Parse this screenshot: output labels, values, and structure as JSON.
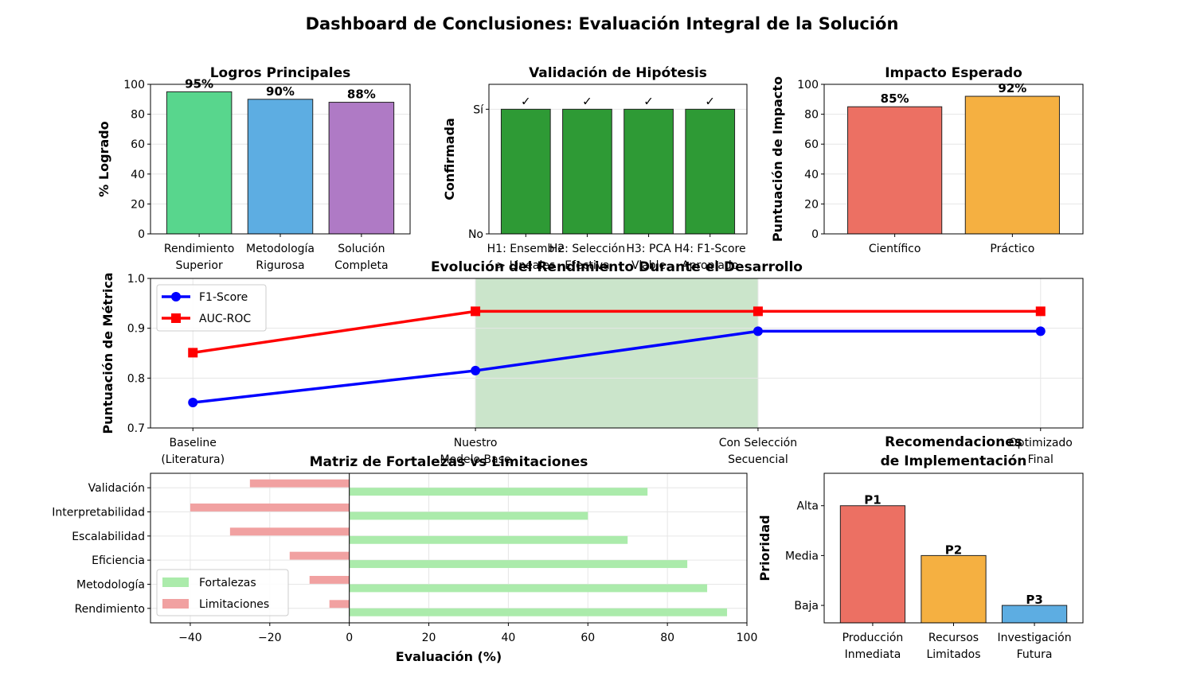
{
  "suptitle": "Dashboard de Conclusiones: Evaluación Integral de la Solución",
  "chart_data": [
    {
      "id": "logros",
      "type": "bar",
      "title": "Logros Principales",
      "ylabel": "% Logrado",
      "xlabel": "",
      "ylim": [
        0,
        100
      ],
      "yticks": [
        0,
        20,
        40,
        60,
        80,
        100
      ],
      "categories": [
        [
          "Rendimiento",
          "Superior"
        ],
        [
          "Metodología",
          "Rigurosa"
        ],
        [
          "Solución",
          "Completa"
        ]
      ],
      "values": [
        95,
        90,
        88
      ],
      "data_labels": [
        "95%",
        "90%",
        "88%"
      ],
      "colors": [
        "#58d68d",
        "#5dade2",
        "#af7ac5"
      ],
      "grid": true
    },
    {
      "id": "hipotesis",
      "type": "bar",
      "title": "Validación de Hipótesis",
      "ylabel": "Confirmada",
      "xlabel": "",
      "ylim": [
        0,
        1.2
      ],
      "ytick_values": [
        0,
        1
      ],
      "ytick_labels": [
        "No",
        "Sí"
      ],
      "categories": [
        [
          "H1: Ensemble",
          "> Lineales"
        ],
        [
          "H2: Selección",
          "Efectiva"
        ],
        [
          "H3: PCA",
          "Viable"
        ],
        [
          "H4: F1-Score",
          "Apropiado"
        ]
      ],
      "values": [
        1,
        1,
        1,
        1
      ],
      "data_labels": [
        "✓",
        "✓",
        "✓",
        "✓"
      ],
      "colors": [
        "#2e9a35",
        "#2e9a35",
        "#2e9a35",
        "#2e9a35"
      ],
      "label_color": "#1a7a1a",
      "grid": true
    },
    {
      "id": "impacto",
      "type": "bar",
      "title": "Impacto Esperado",
      "ylabel": "Puntuación de Impacto",
      "xlabel": "",
      "ylim": [
        0,
        100
      ],
      "yticks": [
        0,
        20,
        40,
        60,
        80,
        100
      ],
      "categories": [
        [
          "Científico"
        ],
        [
          "Práctico"
        ]
      ],
      "values": [
        85,
        92
      ],
      "data_labels": [
        "85%",
        "92%"
      ],
      "colors": [
        "#ec7063",
        "#f5b041"
      ],
      "grid": true
    },
    {
      "id": "evolucion",
      "type": "line",
      "title": "Evolución del Rendimiento Durante el Desarrollo",
      "ylabel": "Puntuación de Métrica",
      "xlabel": "",
      "categories": [
        [
          "Baseline",
          "(Literatura)"
        ],
        [
          "Nuestro",
          "Modelo Base"
        ],
        [
          "Con Selección",
          "Secuencial"
        ],
        [
          "Optimizado",
          "Final"
        ]
      ],
      "ylim": [
        0.7,
        1.0
      ],
      "yticks": [
        0.7,
        0.8,
        0.9,
        1.0
      ],
      "ytick_labels": [
        "0.7",
        "0.8",
        "0.9",
        "1.0"
      ],
      "series": [
        {
          "name": "F1-Score",
          "values": [
            0.751,
            0.815,
            0.894,
            0.894
          ],
          "color": "#0000ff",
          "marker": "circle"
        },
        {
          "name": "AUC-ROC",
          "values": [
            0.851,
            0.934,
            0.934,
            0.934
          ],
          "color": "#ff0000",
          "marker": "square"
        }
      ],
      "shaded_x_range": [
        1,
        2
      ],
      "shade_color": "#a9d4a9",
      "legend_position": "top-left",
      "grid": true
    },
    {
      "id": "matriz",
      "type": "bar",
      "orientation": "horizontal",
      "title": "Matriz de Fortalezas vs Limitaciones",
      "xlabel": "Evaluación (%)",
      "ylabel": "",
      "xlim": [
        -50,
        100
      ],
      "xticks": [
        -40,
        -20,
        0,
        20,
        40,
        60,
        80,
        100
      ],
      "xtick_labels": [
        "−40",
        "−20",
        "0",
        "20",
        "40",
        "60",
        "80",
        "100"
      ],
      "categories": [
        "Rendimiento",
        "Metodología",
        "Eficiencia",
        "Escalabilidad",
        "Interpretabilidad",
        "Validación"
      ],
      "series": [
        {
          "name": "Fortalezas",
          "values": [
            95,
            90,
            85,
            70,
            60,
            75
          ],
          "color": "#abebab"
        },
        {
          "name": "Limitaciones",
          "values": [
            -5,
            -10,
            -15,
            -30,
            -40,
            -25
          ],
          "color": "#f1a1a1"
        }
      ],
      "legend_position": "bottom-left",
      "grid": true
    },
    {
      "id": "recomendaciones",
      "type": "bar",
      "title": "Recomendaciones de Implementación",
      "title_lines": [
        "Recomendaciones",
        "de Implementación"
      ],
      "ylabel": "Prioridad",
      "xlabel": "",
      "ylim": [
        3.35,
        0.35
      ],
      "ytick_values": [
        1,
        2,
        3
      ],
      "ytick_labels": [
        "Alta",
        "Media",
        "Baja"
      ],
      "categories": [
        [
          "Producción",
          "Inmediata"
        ],
        [
          "Recursos",
          "Limitados"
        ],
        [
          "Investigación",
          "Futura"
        ]
      ],
      "values": [
        1,
        2,
        3
      ],
      "data_labels": [
        "P1",
        "P2",
        "P3"
      ],
      "colors": [
        "#ec7063",
        "#f5b041",
        "#5dade2"
      ],
      "grid": false
    }
  ]
}
